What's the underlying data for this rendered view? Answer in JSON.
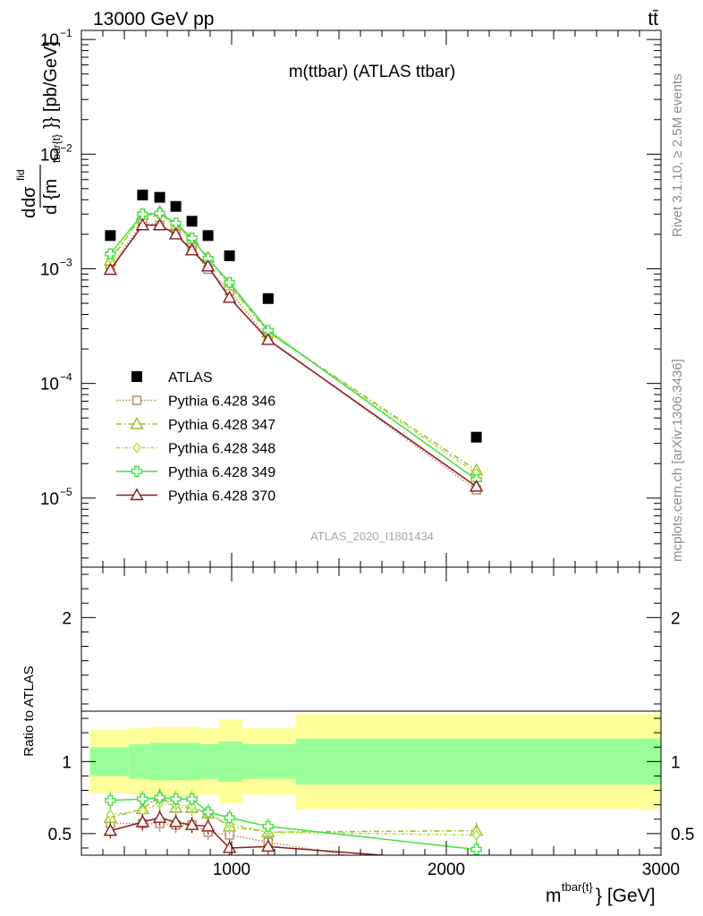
{
  "header": {
    "energy_label": "13000 GeV pp",
    "process_label": "tt̄",
    "analysis_id": "ATLAS_2020_I1801434",
    "side_rivet": "Rivet 3.1.10, ≥ 2.5M events",
    "side_mcplots": "mcplots.cern.ch [arXiv:1306.3436]"
  },
  "chart_data": [
    {
      "type": "scatter",
      "title": "m(ttbar) (ATLAS ttbar)",
      "ylabel_parts": [
        "d",
        "dσ",
        "fid",
        "d {m",
        "tbar{t}",
        "}} [pb/GeV]"
      ],
      "xlabel_parts": [
        "m",
        "tbar{t}",
        "} [GeV]"
      ],
      "xlim": [
        300,
        3000
      ],
      "ylim": [
        2.5e-06,
        0.12
      ],
      "yscale": "log",
      "y_tick_labels": [
        {
          "value": 0.1,
          "base": "10",
          "exp": "−1"
        },
        {
          "value": 0.01,
          "base": "10",
          "exp": "−2"
        },
        {
          "value": 0.001,
          "base": "10",
          "exp": "−3"
        },
        {
          "value": 0.0001,
          "base": "10",
          "exp": "−4"
        },
        {
          "value": 1e-05,
          "base": "10",
          "exp": "−5"
        }
      ],
      "legend_position": "lower-left",
      "series": [
        {
          "name": "ATLAS",
          "marker": "square",
          "color": "#000000",
          "x": [
            435,
            585,
            665,
            740,
            815,
            890,
            990,
            1170,
            2140
          ],
          "y": [
            0.00195,
            0.0044,
            0.0042,
            0.0035,
            0.0026,
            0.00195,
            0.0013,
            0.00055,
            3.4e-05
          ]
        },
        {
          "name": "Pythia 6.428 346",
          "marker": "square-open",
          "color": "#b08a5a",
          "dash": "1.5,2",
          "x": [
            435,
            585,
            665,
            740,
            815,
            890,
            990,
            1170,
            2140
          ],
          "y": [
            0.00105,
            0.0025,
            0.0024,
            0.002,
            0.00145,
            0.00099,
            0.00064,
            0.000245,
            1.18e-05
          ]
        },
        {
          "name": "Pythia 6.428 347",
          "marker": "triangle-open",
          "color": "#9fb82a",
          "dash": "6,3,1.5,3",
          "x": [
            435,
            585,
            665,
            740,
            815,
            890,
            990,
            1170,
            2140
          ],
          "y": [
            0.00118,
            0.00295,
            0.00315,
            0.0024,
            0.0018,
            0.00125,
            0.00072,
            0.00028,
            1.75e-05
          ]
        },
        {
          "name": "Pythia 6.428 348",
          "marker": "diamond-open",
          "color": "#a8e03a",
          "dash": "4,2,1.5,2",
          "x": [
            435,
            585,
            665,
            740,
            815,
            890,
            990,
            1170,
            2140
          ],
          "y": [
            0.00123,
            0.0029,
            0.003,
            0.0024,
            0.0018,
            0.00123,
            0.00074,
            0.00028,
            1.65e-05
          ]
        },
        {
          "name": "Pythia 6.428 349",
          "marker": "cross-open",
          "color": "#40e040",
          "dash": "",
          "x": [
            435,
            585,
            665,
            740,
            815,
            890,
            990,
            1170,
            2140
          ],
          "y": [
            0.00135,
            0.003,
            0.00305,
            0.0025,
            0.00185,
            0.00123,
            0.00076,
            0.00029,
            1.45e-05
          ]
        },
        {
          "name": "Pythia 6.428 370",
          "marker": "triangle-open",
          "color": "#8b1a1a",
          "dash": "",
          "x": [
            435,
            585,
            665,
            740,
            815,
            890,
            990,
            1170,
            2140
          ],
          "y": [
            0.00098,
            0.0024,
            0.0024,
            0.002,
            0.00145,
            0.00105,
            0.00056,
            0.00024,
            1.26e-05
          ]
        }
      ]
    },
    {
      "type": "line",
      "ylabel": "Ratio to ATLAS",
      "xlim": [
        300,
        3000
      ],
      "ylim": [
        0.35,
        2.35
      ],
      "y_ticks": [
        0.5,
        1,
        2
      ],
      "y_tick_labels": [
        "0.5",
        "1",
        "2"
      ],
      "x_ticks": [
        1000,
        2000,
        3000
      ],
      "x_tick_labels": [
        "1000",
        "2000",
        "3000"
      ],
      "bands": {
        "bins": [
          [
            340,
            520
          ],
          [
            520,
            620
          ],
          [
            620,
            700
          ],
          [
            700,
            780
          ],
          [
            780,
            850
          ],
          [
            850,
            940
          ],
          [
            940,
            1050
          ],
          [
            1050,
            1300
          ],
          [
            1300,
            3000
          ]
        ],
        "total_lo": [
          0.78,
          0.77,
          0.76,
          0.76,
          0.76,
          0.77,
          0.71,
          0.77,
          0.67
        ],
        "total_hi": [
          1.22,
          1.23,
          1.24,
          1.24,
          1.24,
          1.23,
          1.29,
          1.23,
          1.33
        ],
        "stat_lo": [
          0.9,
          0.88,
          0.87,
          0.87,
          0.87,
          0.88,
          0.86,
          0.88,
          0.84
        ],
        "stat_hi": [
          1.1,
          1.12,
          1.13,
          1.13,
          1.13,
          1.12,
          1.14,
          1.12,
          1.16
        ],
        "total_color": "#ffff99",
        "stat_color": "#99ff99"
      },
      "series": [
        {
          "name": "Pythia 6.428 346",
          "marker": "square-open",
          "color": "#b08a5a",
          "dash": "1.5,2",
          "x": [
            435,
            585,
            665,
            740,
            815,
            890,
            990,
            1170,
            2140
          ],
          "y": [
            0.57,
            0.57,
            0.57,
            0.56,
            0.56,
            0.51,
            0.49,
            0.44,
            0.2
          ]
        },
        {
          "name": "Pythia 6.428 347",
          "marker": "triangle-open",
          "color": "#9fb82a",
          "dash": "6,3,1.5,3",
          "x": [
            435,
            585,
            665,
            740,
            815,
            890,
            990,
            1170,
            2140
          ],
          "y": [
            0.61,
            0.67,
            0.76,
            0.68,
            0.68,
            0.64,
            0.55,
            0.51,
            0.52
          ]
        },
        {
          "name": "Pythia 6.428 348",
          "marker": "diamond-open",
          "color": "#a8e03a",
          "dash": "4,2,1.5,2",
          "x": [
            435,
            585,
            665,
            740,
            815,
            890,
            990,
            1170,
            2140
          ],
          "y": [
            0.63,
            0.66,
            0.71,
            0.7,
            0.69,
            0.63,
            0.57,
            0.51,
            0.49
          ]
        },
        {
          "name": "Pythia 6.428 349",
          "marker": "cross-open",
          "color": "#40e040",
          "dash": "",
          "x": [
            435,
            585,
            665,
            740,
            815,
            890,
            990,
            1170,
            2140
          ],
          "y": [
            0.73,
            0.74,
            0.75,
            0.74,
            0.74,
            0.65,
            0.61,
            0.55,
            0.39
          ]
        },
        {
          "name": "Pythia 6.428 370",
          "marker": "triangle-open",
          "color": "#8b1a1a",
          "dash": "",
          "x": [
            435,
            585,
            665,
            740,
            815,
            890,
            990,
            1170,
            2140
          ],
          "y": [
            0.52,
            0.58,
            0.61,
            0.58,
            0.56,
            0.55,
            0.4,
            0.41,
            0.3
          ]
        }
      ]
    }
  ]
}
